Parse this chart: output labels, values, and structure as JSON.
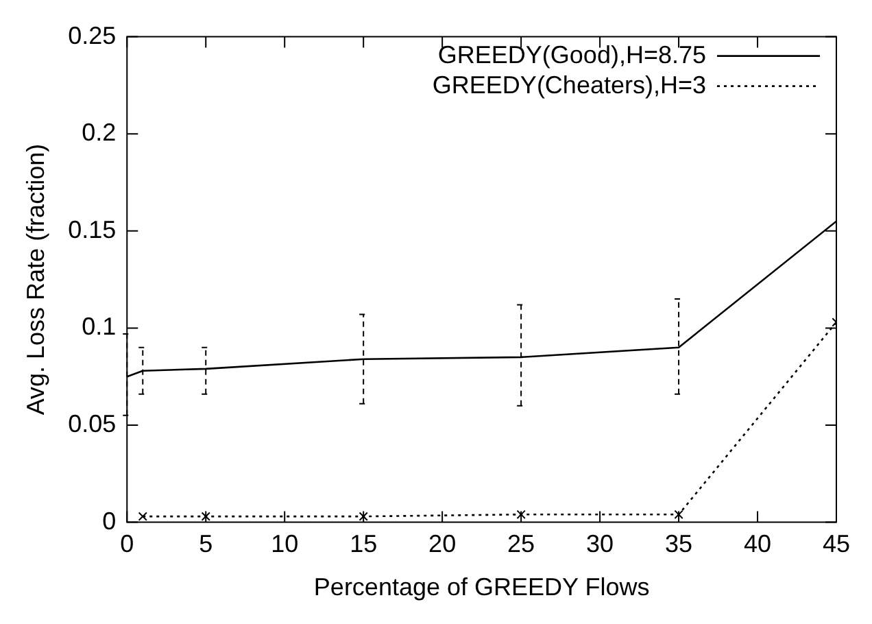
{
  "chart_data": {
    "type": "line",
    "xlabel": "Percentage of GREEDY Flows",
    "ylabel": "Avg. Loss Rate (fraction)",
    "xlim": [
      0,
      45
    ],
    "xticks": [
      0,
      5,
      10,
      15,
      20,
      25,
      30,
      35,
      40,
      45
    ],
    "ylim": [
      0,
      0.25
    ],
    "yticks": [
      0,
      0.05,
      0.1,
      0.15,
      0.2,
      0.25
    ],
    "legend": "top right",
    "grid": false,
    "series": [
      {
        "name": "GREEDY(Good),H=8.75",
        "color": "#000000",
        "line_style": "solid",
        "marker": "none",
        "x": [
          0,
          1,
          5,
          15,
          25,
          35,
          45
        ],
        "values": [
          0.075,
          0.078,
          0.079,
          0.084,
          0.085,
          0.09,
          0.155
        ],
        "errors": [
          [
            0.055,
            0.097
          ],
          [
            0.066,
            0.09
          ],
          [
            0.066,
            0.09
          ],
          [
            0.061,
            0.107
          ],
          [
            0.06,
            0.112
          ],
          [
            0.066,
            0.115
          ],
          null
        ]
      },
      {
        "name": "GREEDY(Cheaters),H=3",
        "color": "#000000",
        "line_style": "dotted",
        "marker": "cross",
        "x": [
          1,
          5,
          15,
          25,
          35,
          45
        ],
        "values": [
          0.003,
          0.003,
          0.003,
          0.004,
          0.004,
          0.103
        ]
      }
    ]
  }
}
